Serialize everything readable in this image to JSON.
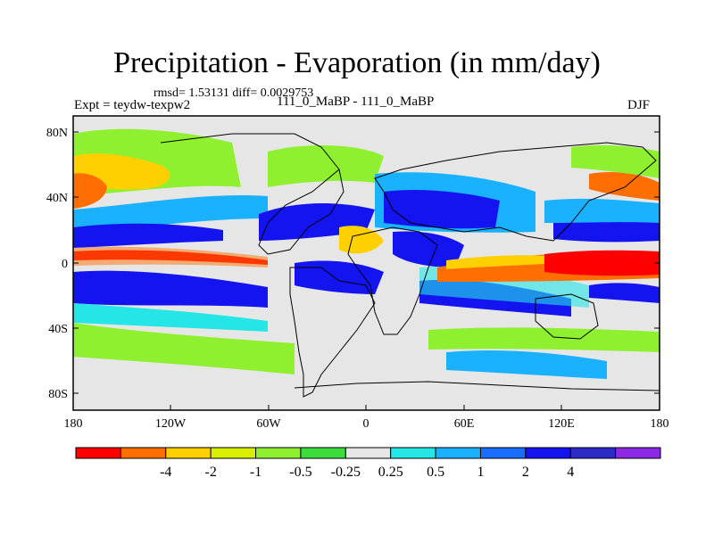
{
  "header": {
    "title": "Precipitation - Evaporation (in mm/day)",
    "stats": "rmsd= 1.53131 diff= 0.0029753",
    "experiment": "Expt = teydw-texpw2",
    "comparison": "111_0_MaBP - 111_0_MaBP",
    "season": "DJF"
  },
  "map": {
    "lat_ticks": [
      "80N",
      "40N",
      "0",
      "40S",
      "80S"
    ],
    "lon_ticks": [
      "180",
      "120W",
      "60W",
      "0",
      "60E",
      "120E",
      "180"
    ],
    "background_color": "#e6e6e6"
  },
  "colorbar": {
    "colors": [
      "#ff0000",
      "#ff6e00",
      "#ffd000",
      "#d8f000",
      "#8ff02f",
      "#3bdc3b",
      "#e6e6e6",
      "#25e6e6",
      "#1ab2ff",
      "#1a6eff",
      "#1414f0",
      "#2a2ac8",
      "#8c28e6"
    ],
    "labels": [
      "-4",
      "-2",
      "-1",
      "-0.5",
      "-0.25",
      "0.25",
      "0.5",
      "1",
      "2",
      "4"
    ]
  }
}
